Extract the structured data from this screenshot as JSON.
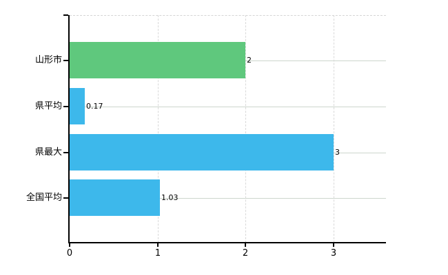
{
  "chart_data": {
    "type": "bar",
    "orientation": "horizontal",
    "title": "",
    "xlabel": "",
    "ylabel": "",
    "categories": [
      "山形市",
      "県平均",
      "県最大",
      "全国平均"
    ],
    "values": [
      2,
      0.17,
      3,
      1.03
    ],
    "value_labels": [
      "2",
      "0.17",
      "3",
      "1.03"
    ],
    "bar_colors": [
      "#5fc87d",
      "#3db8eb",
      "#3db8eb",
      "#3db8eb"
    ],
    "x_ticks": [
      "0",
      "1",
      "2",
      "3"
    ],
    "x_tick_values": [
      0,
      1,
      2,
      3
    ],
    "xlim": [
      0,
      3.6
    ],
    "legend": "none",
    "grid": {
      "horizontal": true,
      "vertical": true,
      "top_border": true
    },
    "background": "#ffffff",
    "colors": {
      "axis": "#000000",
      "text": "#000000",
      "grid_horizontal": "#ccd6cc",
      "grid_vertical": "#d9d9d9",
      "top_border": "#d4d4d4"
    }
  }
}
